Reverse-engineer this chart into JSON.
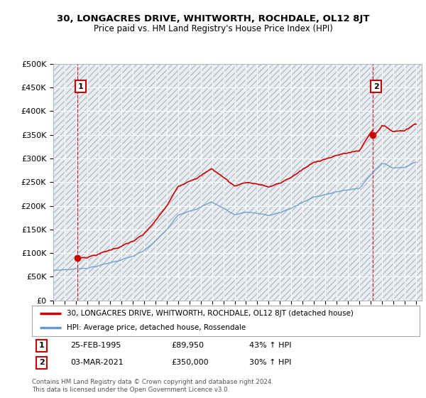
{
  "title": "30, LONGACRES DRIVE, WHITWORTH, ROCHDALE, OL12 8JT",
  "subtitle": "Price paid vs. HM Land Registry's House Price Index (HPI)",
  "red_line_color": "#cc0000",
  "blue_line_color": "#6699cc",
  "sale1_price": 89950,
  "sale1_date": "25-FEB-1995",
  "sale1_hpi": "43% ↑ HPI",
  "sale1_year": 1995.12,
  "sale2_price": 350000,
  "sale2_date": "03-MAR-2021",
  "sale2_hpi": "30% ↑ HPI",
  "sale2_year": 2021.17,
  "legend_line1": "30, LONGACRES DRIVE, WHITWORTH, ROCHDALE, OL12 8JT (detached house)",
  "legend_line2": "HPI: Average price, detached house, Rossendale",
  "footer": "Contains HM Land Registry data © Crown copyright and database right 2024.\nThis data is licensed under the Open Government Licence v3.0.",
  "ylim": [
    0,
    500000
  ],
  "yticks": [
    0,
    50000,
    100000,
    150000,
    200000,
    250000,
    300000,
    350000,
    400000,
    450000,
    500000
  ],
  "xlim_start": 1993.0,
  "xlim_end": 2025.5,
  "hatch_color": "#d8d8d8",
  "bg_color": "#e8eef5"
}
